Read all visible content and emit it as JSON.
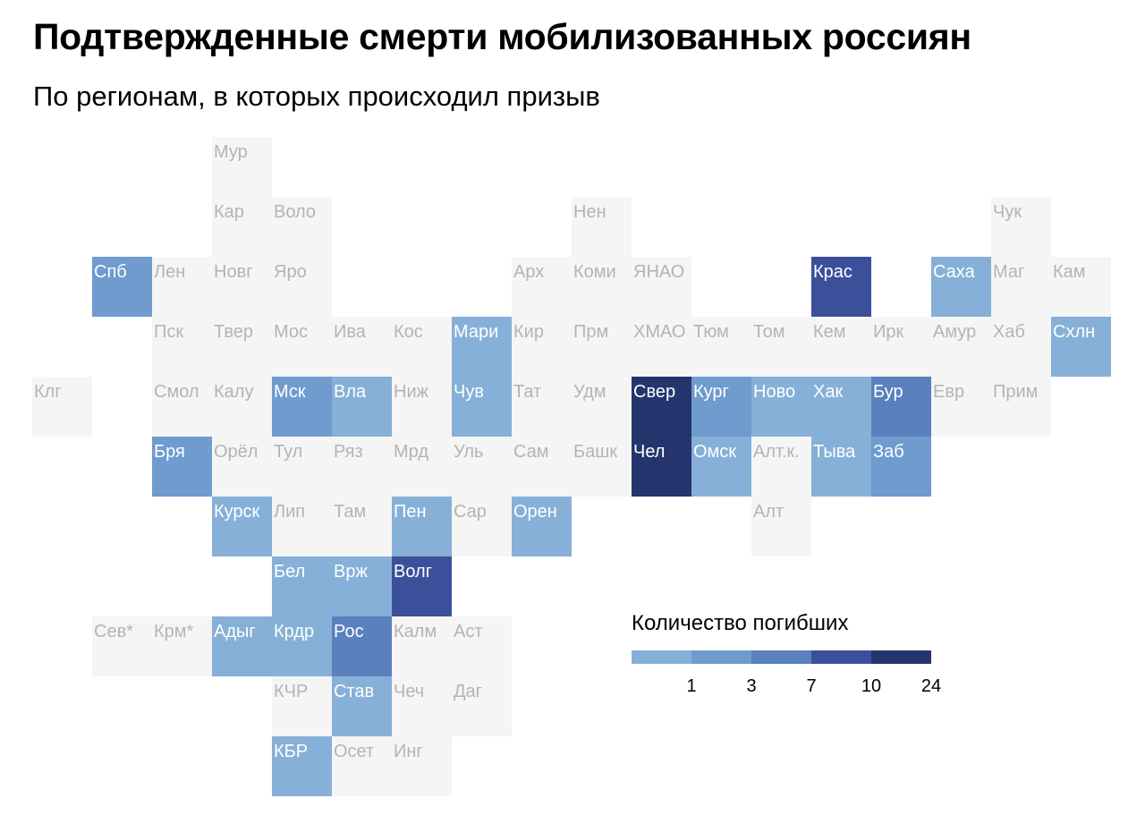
{
  "chart_data": {
    "type": "heatmap",
    "title": "Подтвержденные смерти мобилизованных россиян",
    "subtitle": "По регионам, в которых происходил призыв",
    "legend": {
      "title": "Количество погибших",
      "placement": "bottom-right",
      "ticks": [
        "1",
        "3",
        "7",
        "10",
        "24"
      ],
      "colors": [
        "#86b0d7",
        "#6f9bce",
        "#5a80bd",
        "#3c4f9a",
        "#24356d"
      ]
    },
    "level_colors": [
      "#f5f5f5",
      "#86b0d7",
      "#6f9bce",
      "#5a80bd",
      "#3c4f9a",
      "#24356d"
    ],
    "regions": [
      {
        "label": "Мур",
        "row": 0,
        "col": 3,
        "level": 0
      },
      {
        "label": "Кар",
        "row": 1,
        "col": 3,
        "level": 0
      },
      {
        "label": "Воло",
        "row": 1,
        "col": 4,
        "level": 0
      },
      {
        "label": "Нен",
        "row": 1,
        "col": 9,
        "level": 0
      },
      {
        "label": "Чук",
        "row": 1,
        "col": 16,
        "level": 0
      },
      {
        "label": "Спб",
        "row": 2,
        "col": 1,
        "level": 2
      },
      {
        "label": "Лен",
        "row": 2,
        "col": 2,
        "level": 0
      },
      {
        "label": "Новг",
        "row": 2,
        "col": 3,
        "level": 0
      },
      {
        "label": "Яро",
        "row": 2,
        "col": 4,
        "level": 0
      },
      {
        "label": "Арх",
        "row": 2,
        "col": 8,
        "level": 0
      },
      {
        "label": "Коми",
        "row": 2,
        "col": 9,
        "level": 0
      },
      {
        "label": "ЯНАО",
        "row": 2,
        "col": 10,
        "level": 0
      },
      {
        "label": "Крас",
        "row": 2,
        "col": 13,
        "level": 4
      },
      {
        "label": "Саха",
        "row": 2,
        "col": 15,
        "level": 1
      },
      {
        "label": "Маг",
        "row": 2,
        "col": 16,
        "level": 0
      },
      {
        "label": "Кам",
        "row": 2,
        "col": 17,
        "level": 0
      },
      {
        "label": "Пск",
        "row": 3,
        "col": 2,
        "level": 0
      },
      {
        "label": "Твер",
        "row": 3,
        "col": 3,
        "level": 0
      },
      {
        "label": "Мос",
        "row": 3,
        "col": 4,
        "level": 0
      },
      {
        "label": "Ива",
        "row": 3,
        "col": 5,
        "level": 0
      },
      {
        "label": "Кос",
        "row": 3,
        "col": 6,
        "level": 0
      },
      {
        "label": "Мари",
        "row": 3,
        "col": 7,
        "level": 1
      },
      {
        "label": "Кир",
        "row": 3,
        "col": 8,
        "level": 0
      },
      {
        "label": "Прм",
        "row": 3,
        "col": 9,
        "level": 0
      },
      {
        "label": "ХМАО",
        "row": 3,
        "col": 10,
        "level": 0
      },
      {
        "label": "Тюм",
        "row": 3,
        "col": 11,
        "level": 0
      },
      {
        "label": "Том",
        "row": 3,
        "col": 12,
        "level": 0
      },
      {
        "label": "Кем",
        "row": 3,
        "col": 13,
        "level": 0
      },
      {
        "label": "Ирк",
        "row": 3,
        "col": 14,
        "level": 0
      },
      {
        "label": "Амур",
        "row": 3,
        "col": 15,
        "level": 0
      },
      {
        "label": "Хаб",
        "row": 3,
        "col": 16,
        "level": 0
      },
      {
        "label": "Схлн",
        "row": 3,
        "col": 17,
        "level": 1
      },
      {
        "label": "Клг",
        "row": 4,
        "col": 0,
        "level": 0
      },
      {
        "label": "Смол",
        "row": 4,
        "col": 2,
        "level": 0
      },
      {
        "label": "Калу",
        "row": 4,
        "col": 3,
        "level": 0
      },
      {
        "label": "Мск",
        "row": 4,
        "col": 4,
        "level": 2
      },
      {
        "label": "Вла",
        "row": 4,
        "col": 5,
        "level": 1
      },
      {
        "label": "Ниж",
        "row": 4,
        "col": 6,
        "level": 0
      },
      {
        "label": "Чув",
        "row": 4,
        "col": 7,
        "level": 1
      },
      {
        "label": "Тат",
        "row": 4,
        "col": 8,
        "level": 0
      },
      {
        "label": "Удм",
        "row": 4,
        "col": 9,
        "level": 0
      },
      {
        "label": "Свер",
        "row": 4,
        "col": 10,
        "level": 5
      },
      {
        "label": "Кург",
        "row": 4,
        "col": 11,
        "level": 2
      },
      {
        "label": "Ново",
        "row": 4,
        "col": 12,
        "level": 1
      },
      {
        "label": "Хак",
        "row": 4,
        "col": 13,
        "level": 1
      },
      {
        "label": "Бур",
        "row": 4,
        "col": 14,
        "level": 3
      },
      {
        "label": "Евр",
        "row": 4,
        "col": 15,
        "level": 0
      },
      {
        "label": "Прим",
        "row": 4,
        "col": 16,
        "level": 0
      },
      {
        "label": "Бря",
        "row": 5,
        "col": 2,
        "level": 2
      },
      {
        "label": "Орёл",
        "row": 5,
        "col": 3,
        "level": 0
      },
      {
        "label": "Тул",
        "row": 5,
        "col": 4,
        "level": 0
      },
      {
        "label": "Ряз",
        "row": 5,
        "col": 5,
        "level": 0
      },
      {
        "label": "Мрд",
        "row": 5,
        "col": 6,
        "level": 0
      },
      {
        "label": "Уль",
        "row": 5,
        "col": 7,
        "level": 0
      },
      {
        "label": "Сам",
        "row": 5,
        "col": 8,
        "level": 0
      },
      {
        "label": "Башк",
        "row": 5,
        "col": 9,
        "level": 0
      },
      {
        "label": "Чел",
        "row": 5,
        "col": 10,
        "level": 5
      },
      {
        "label": "Омск",
        "row": 5,
        "col": 11,
        "level": 1
      },
      {
        "label": "Алт.к.",
        "row": 5,
        "col": 12,
        "level": 0
      },
      {
        "label": "Тыва",
        "row": 5,
        "col": 13,
        "level": 1
      },
      {
        "label": "Заб",
        "row": 5,
        "col": 14,
        "level": 2
      },
      {
        "label": "Курск",
        "row": 6,
        "col": 3,
        "level": 1
      },
      {
        "label": "Лип",
        "row": 6,
        "col": 4,
        "level": 0
      },
      {
        "label": "Там",
        "row": 6,
        "col": 5,
        "level": 0
      },
      {
        "label": "Пен",
        "row": 6,
        "col": 6,
        "level": 1
      },
      {
        "label": "Сар",
        "row": 6,
        "col": 7,
        "level": 0
      },
      {
        "label": "Орен",
        "row": 6,
        "col": 8,
        "level": 1
      },
      {
        "label": "Алт",
        "row": 6,
        "col": 12,
        "level": 0
      },
      {
        "label": "Бел",
        "row": 7,
        "col": 4,
        "level": 1
      },
      {
        "label": "Врж",
        "row": 7,
        "col": 5,
        "level": 1
      },
      {
        "label": "Волг",
        "row": 7,
        "col": 6,
        "level": 4
      },
      {
        "label": "Сев*",
        "row": 8,
        "col": 1,
        "level": 0
      },
      {
        "label": "Крм*",
        "row": 8,
        "col": 2,
        "level": 0
      },
      {
        "label": "Адыг",
        "row": 8,
        "col": 3,
        "level": 1
      },
      {
        "label": "Крдр",
        "row": 8,
        "col": 4,
        "level": 1
      },
      {
        "label": "Рос",
        "row": 8,
        "col": 5,
        "level": 3
      },
      {
        "label": "Калм",
        "row": 8,
        "col": 6,
        "level": 0
      },
      {
        "label": "Аст",
        "row": 8,
        "col": 7,
        "level": 0
      },
      {
        "label": "КЧР",
        "row": 9,
        "col": 4,
        "level": 0
      },
      {
        "label": "Став",
        "row": 9,
        "col": 5,
        "level": 1
      },
      {
        "label": "Чеч",
        "row": 9,
        "col": 6,
        "level": 0
      },
      {
        "label": "Даг",
        "row": 9,
        "col": 7,
        "level": 0
      },
      {
        "label": "КБР",
        "row": 10,
        "col": 4,
        "level": 1
      },
      {
        "label": "Осет",
        "row": 10,
        "col": 5,
        "level": 0
      },
      {
        "label": "Инг",
        "row": 10,
        "col": 6,
        "level": 0
      }
    ]
  }
}
